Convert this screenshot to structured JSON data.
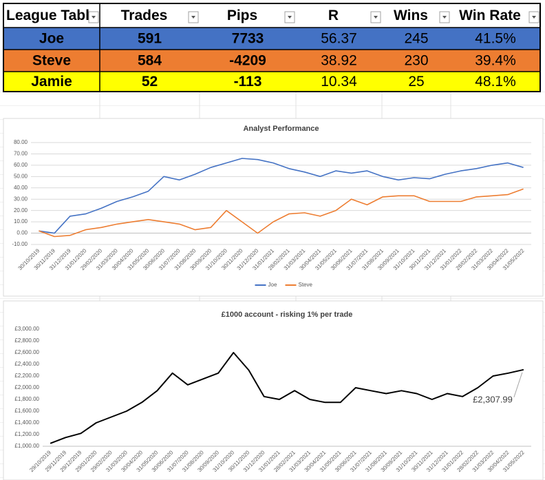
{
  "table": {
    "header": [
      "League Tabl",
      "Trades",
      "Pips",
      "R",
      "Wins",
      "Win Rate"
    ],
    "rows": [
      [
        "Joe",
        "591",
        "7733",
        "56.37",
        "245",
        "41.5%"
      ],
      [
        "Steve",
        "584",
        "-4209",
        "38.92",
        "230",
        "39.4%"
      ],
      [
        "Jamie",
        "52",
        "-113",
        "10.34",
        "25",
        "48.1%"
      ]
    ],
    "row_colors": [
      "#4472c4",
      "#ed7d31",
      "#ffff00"
    ]
  },
  "chart_data": [
    {
      "type": "line",
      "title": "Analyst Performance",
      "categories": [
        "30/10/2019",
        "30/11/2019",
        "31/12/2019",
        "31/01/2020",
        "29/02/2020",
        "31/03/2020",
        "30/04/2020",
        "31/05/2020",
        "30/06/2020",
        "31/07/2020",
        "31/08/2020",
        "30/09/2020",
        "31/10/2020",
        "30/11/2020",
        "31/12/2020",
        "31/01/2021",
        "28/02/2021",
        "31/03/2021",
        "30/04/2021",
        "31/05/2021",
        "30/06/2021",
        "31/07/2021",
        "31/08/2021",
        "30/09/2021",
        "31/10/2021",
        "30/11/2021",
        "31/12/2021",
        "31/01/2022",
        "28/02/2022",
        "31/03/2022",
        "30/04/2022",
        "31/05/2022"
      ],
      "series": [
        {
          "name": "Joe",
          "color": "#4472c4",
          "values": [
            2,
            0,
            15,
            17,
            22,
            28,
            32,
            37,
            50,
            47,
            52,
            58,
            62,
            66,
            65,
            62,
            57,
            54,
            50,
            55,
            53,
            55,
            50,
            47,
            49,
            48,
            52,
            55,
            57,
            60,
            62,
            58
          ]
        },
        {
          "name": "Steve",
          "color": "#ed7d31",
          "values": [
            2,
            -3,
            -2,
            3,
            5,
            8,
            10,
            12,
            10,
            8,
            3,
            5,
            20,
            10,
            0,
            10,
            17,
            18,
            15,
            20,
            30,
            25,
            32,
            33,
            33,
            28,
            28,
            28,
            32,
            33,
            34,
            39
          ]
        }
      ],
      "ylim": [
        -10,
        80
      ],
      "yticks": [
        {
          "value": -10,
          "label": "-10.00"
        },
        {
          "value": 0,
          "label": "0.00"
        },
        {
          "value": 10,
          "label": "10.00"
        },
        {
          "value": 20,
          "label": "20.00"
        },
        {
          "value": 30,
          "label": "30.00"
        },
        {
          "value": 40,
          "label": "40.00"
        },
        {
          "value": 50,
          "label": "50.00"
        },
        {
          "value": 60,
          "label": "60.00"
        },
        {
          "value": 70,
          "label": "70.00"
        },
        {
          "value": 80,
          "label": "80.00"
        }
      ],
      "grid": true,
      "legend": "bottom"
    },
    {
      "type": "line",
      "title": "£1000 account - risking 1% per trade",
      "categories": [
        "29/10/2019",
        "29/11/2019",
        "29/12/2019",
        "29/01/2020",
        "29/02/2020",
        "31/03/2020",
        "30/04/2020",
        "31/05/2020",
        "30/06/2020",
        "31/07/2020",
        "31/08/2020",
        "30/09/2020",
        "31/10/2020",
        "30/11/2020",
        "31/12/2020",
        "31/01/2021",
        "28/02/2021",
        "31/03/2021",
        "30/04/2021",
        "31/05/2021",
        "30/06/2021",
        "31/07/2021",
        "31/08/2021",
        "30/09/2021",
        "31/10/2021",
        "30/11/2021",
        "31/12/2021",
        "31/01/2022",
        "28/02/2022",
        "31/03/2022",
        "30/04/2022",
        "31/05/2022"
      ],
      "series": [
        {
          "color": "#000000",
          "values": [
            1050,
            1150,
            1220,
            1400,
            1500,
            1600,
            1750,
            1950,
            2250,
            2050,
            2150,
            2250,
            2600,
            2300,
            1850,
            1800,
            1950,
            1800,
            1750,
            1750,
            2000,
            1950,
            1900,
            1950,
            1900,
            1800,
            1900,
            1850,
            2000,
            2200,
            2250,
            2307.99
          ]
        }
      ],
      "value_labels": [
        null,
        null,
        null,
        null,
        null,
        null,
        null,
        null,
        null,
        null,
        null,
        null,
        null,
        null,
        null,
        null,
        null,
        null,
        null,
        null,
        null,
        null,
        null,
        null,
        null,
        null,
        null,
        null,
        null,
        null,
        null,
        "£2,307.99"
      ],
      "ylim": [
        1000,
        3000
      ],
      "yticks": [
        {
          "value": 1000,
          "label": "£1,000.00"
        },
        {
          "value": 1200,
          "label": "£1,200.00"
        },
        {
          "value": 1400,
          "label": "£1,400.00"
        },
        {
          "value": 1600,
          "label": "£1,600.00"
        },
        {
          "value": 1800,
          "label": "£1,800.00"
        },
        {
          "value": 2000,
          "label": "£2,000.00"
        },
        {
          "value": 2200,
          "label": "£2,200.00"
        },
        {
          "value": 2400,
          "label": "£2,400.00"
        },
        {
          "value": 2600,
          "label": "£2,600.00"
        },
        {
          "value": 2800,
          "label": "£2,800.00"
        },
        {
          "value": 3000,
          "label": "£3,000.00"
        }
      ],
      "grid": false
    }
  ]
}
